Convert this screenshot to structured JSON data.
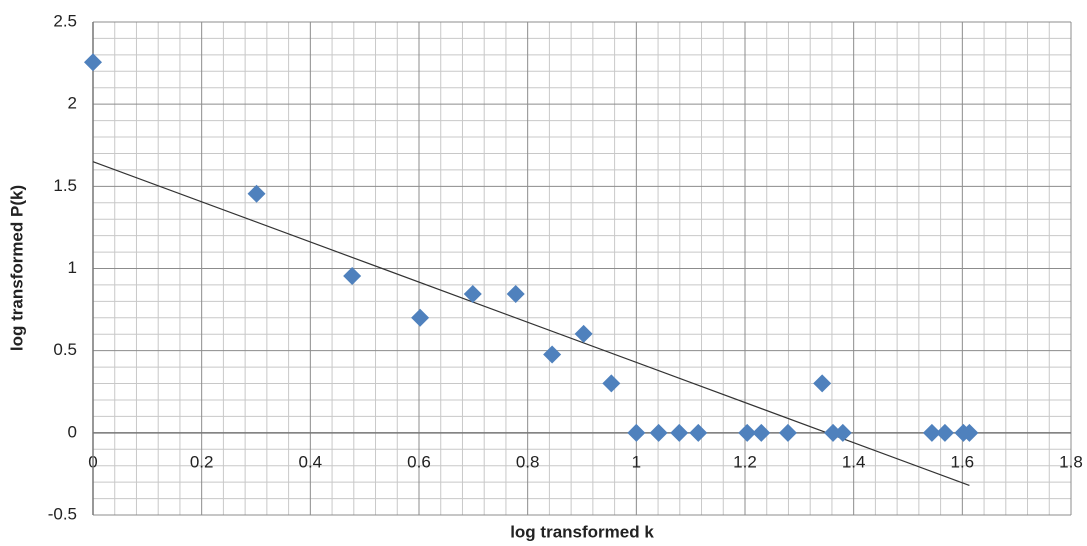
{
  "chart_data": {
    "type": "scatter",
    "xlabel": "log transformed k",
    "ylabel": "log transformed P(k)",
    "xlim": [
      0,
      1.8
    ],
    "ylim": [
      -0.5,
      2.5
    ],
    "xticks": [
      0,
      0.2,
      0.4,
      0.6,
      0.8,
      1,
      1.2,
      1.4,
      1.6,
      1.8
    ],
    "yticks": [
      -0.5,
      0,
      0.5,
      1,
      1.5,
      2,
      2.5
    ],
    "grid": true,
    "series": [
      {
        "color": "#4f81bd",
        "x": [
          0,
          0.301,
          0.477,
          0.602,
          0.699,
          0.778,
          0.845,
          0.903,
          0.954,
          1.0,
          1.041,
          1.079,
          1.114,
          1.204,
          1.23,
          1.279,
          1.342,
          1.362,
          1.38,
          1.544,
          1.568,
          1.602,
          1.613
        ],
        "values": [
          2.255,
          1.455,
          0.954,
          0.7,
          0.845,
          0.845,
          0.477,
          0.602,
          0.301,
          0,
          0,
          0,
          0,
          0,
          0,
          0,
          0.301,
          0,
          0,
          0,
          0,
          0,
          0
        ]
      }
    ],
    "trendline": {
      "color": "#333333",
      "x": [
        0,
        1.613
      ],
      "values": [
        1.65,
        -0.32
      ]
    }
  }
}
